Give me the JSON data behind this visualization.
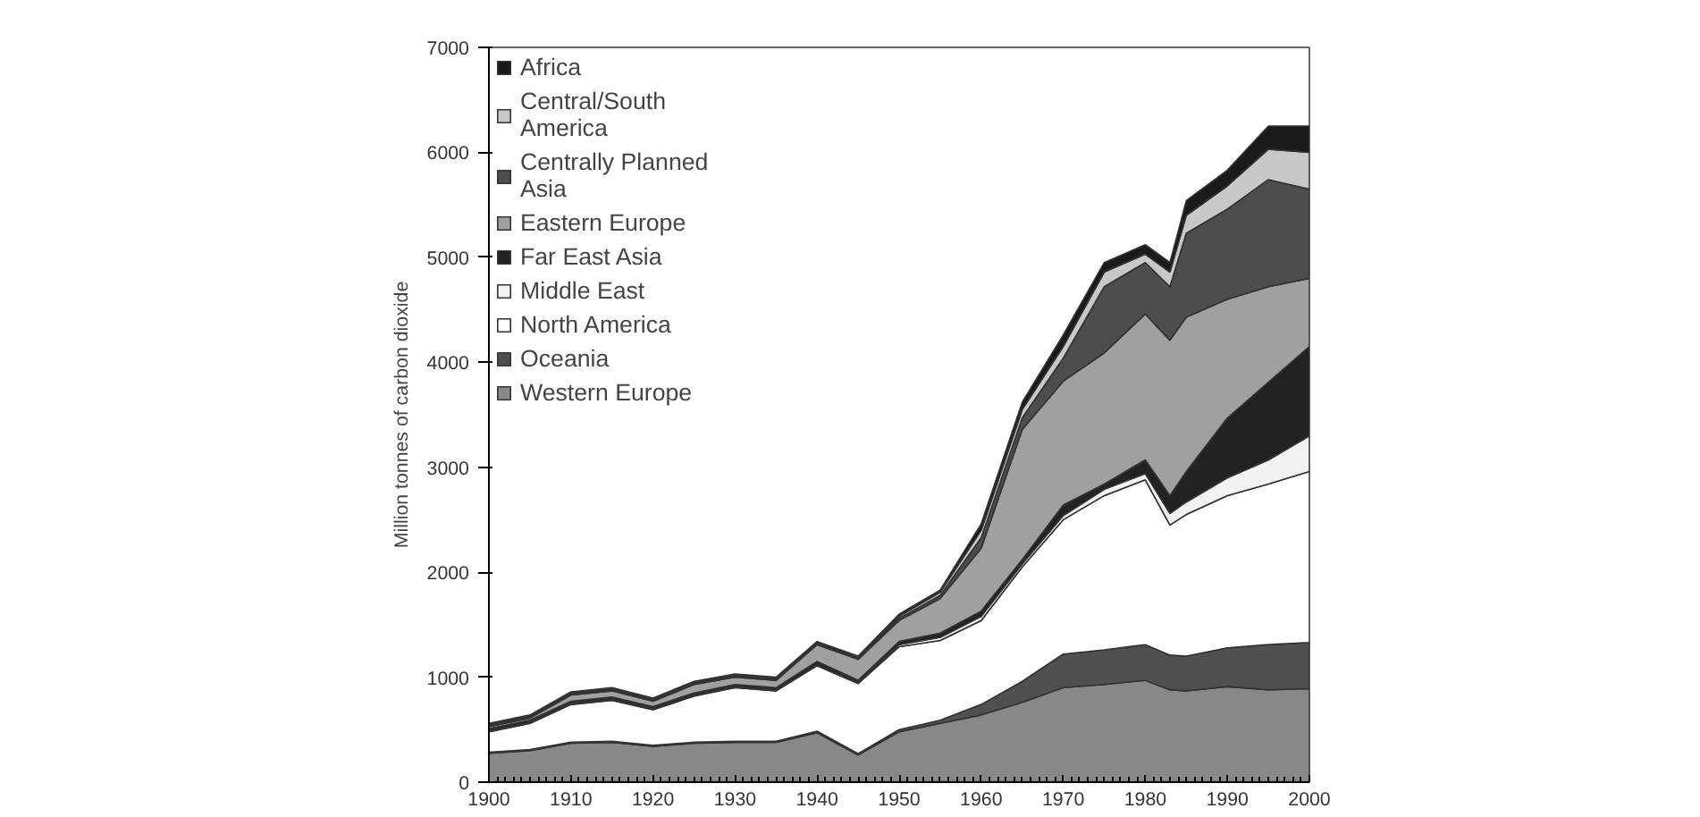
{
  "chart_data": {
    "type": "area",
    "stacked": true,
    "ylabel": "Million tonnes of carbon dioxide",
    "x": [
      1900,
      1905,
      1910,
      1915,
      1920,
      1925,
      1930,
      1935,
      1940,
      1945,
      1950,
      1955,
      1960,
      1965,
      1970,
      1975,
      1980,
      1983,
      1985,
      1990,
      1995,
      2000
    ],
    "xlim": [
      1900,
      2000
    ],
    "xticks": [
      1900,
      1910,
      1920,
      1930,
      1940,
      1950,
      1960,
      1970,
      1980,
      1990,
      2000
    ],
    "ylim": [
      0,
      7000
    ],
    "yticks": [
      0,
      1000,
      2000,
      3000,
      4000,
      5000,
      6000,
      7000
    ],
    "grid": false,
    "legend": "top left",
    "series": [
      {
        "name": "Western Europe",
        "color": "#888888",
        "values": [
          275,
          300,
          370,
          380,
          340,
          370,
          380,
          380,
          470,
          260,
          480,
          560,
          640,
          760,
          900,
          930,
          970,
          880,
          870,
          910,
          880,
          890
        ]
      },
      {
        "name": "Oceania",
        "color": "#505050",
        "values": [
          10,
          10,
          10,
          10,
          10,
          10,
          10,
          10,
          15,
          10,
          20,
          30,
          100,
          200,
          320,
          330,
          340,
          330,
          330,
          370,
          430,
          440
        ]
      },
      {
        "name": "North America",
        "color": "#ffffff",
        "values": [
          195,
          250,
          360,
          390,
          340,
          440,
          510,
          480,
          625,
          670,
          790,
          760,
          800,
          1090,
          1280,
          1470,
          1570,
          1240,
          1350,
          1450,
          1530,
          1630
        ]
      },
      {
        "name": "Middle East",
        "color": "#f2f2f2",
        "values": [
          10,
          10,
          10,
          10,
          10,
          10,
          10,
          10,
          10,
          10,
          20,
          30,
          40,
          30,
          40,
          60,
          60,
          110,
          120,
          170,
          230,
          340
        ]
      },
      {
        "name": "Far East Asia",
        "color": "#222222",
        "values": [
          20,
          20,
          20,
          20,
          20,
          20,
          20,
          20,
          30,
          20,
          30,
          40,
          50,
          40,
          100,
          50,
          130,
          170,
          290,
          570,
          740,
          850
        ]
      },
      {
        "name": "Eastern Europe",
        "color": "#a0a0a0",
        "values": [
          20,
          20,
          60,
          60,
          50,
          80,
          70,
          70,
          160,
          200,
          200,
          330,
          600,
          1240,
          1180,
          1250,
          1390,
          1480,
          1470,
          1130,
          910,
          650
        ]
      },
      {
        "name": "Centrally Planned Asia",
        "color": "#4d4d4d",
        "values": [
          10,
          10,
          10,
          10,
          10,
          10,
          10,
          10,
          10,
          10,
          20,
          30,
          100,
          110,
          220,
          630,
          490,
          510,
          800,
          860,
          1020,
          850
        ]
      },
      {
        "name": "Central/South America",
        "color": "#c8c8c8",
        "values": [
          10,
          10,
          10,
          10,
          10,
          10,
          10,
          10,
          10,
          10,
          20,
          30,
          70,
          80,
          110,
          140,
          80,
          140,
          170,
          220,
          290,
          350
        ]
      },
      {
        "name": "Africa",
        "color": "#1a1a1a",
        "values": [
          10,
          10,
          10,
          10,
          10,
          10,
          10,
          10,
          10,
          10,
          20,
          20,
          60,
          70,
          110,
          90,
          90,
          90,
          140,
          150,
          220,
          250
        ]
      }
    ]
  }
}
